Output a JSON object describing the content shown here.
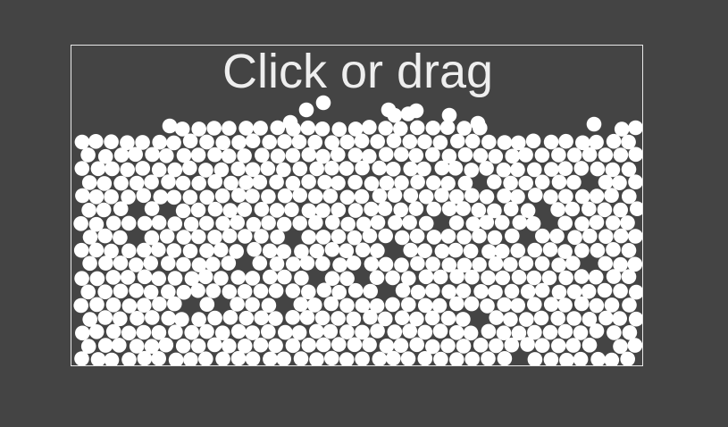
{
  "colors": {
    "background": "#444444",
    "frame_border": "#e8e8e8",
    "particle": "#ffffff",
    "text": "#eeeeee"
  },
  "simulation": {
    "instruction": "Click or drag"
  }
}
